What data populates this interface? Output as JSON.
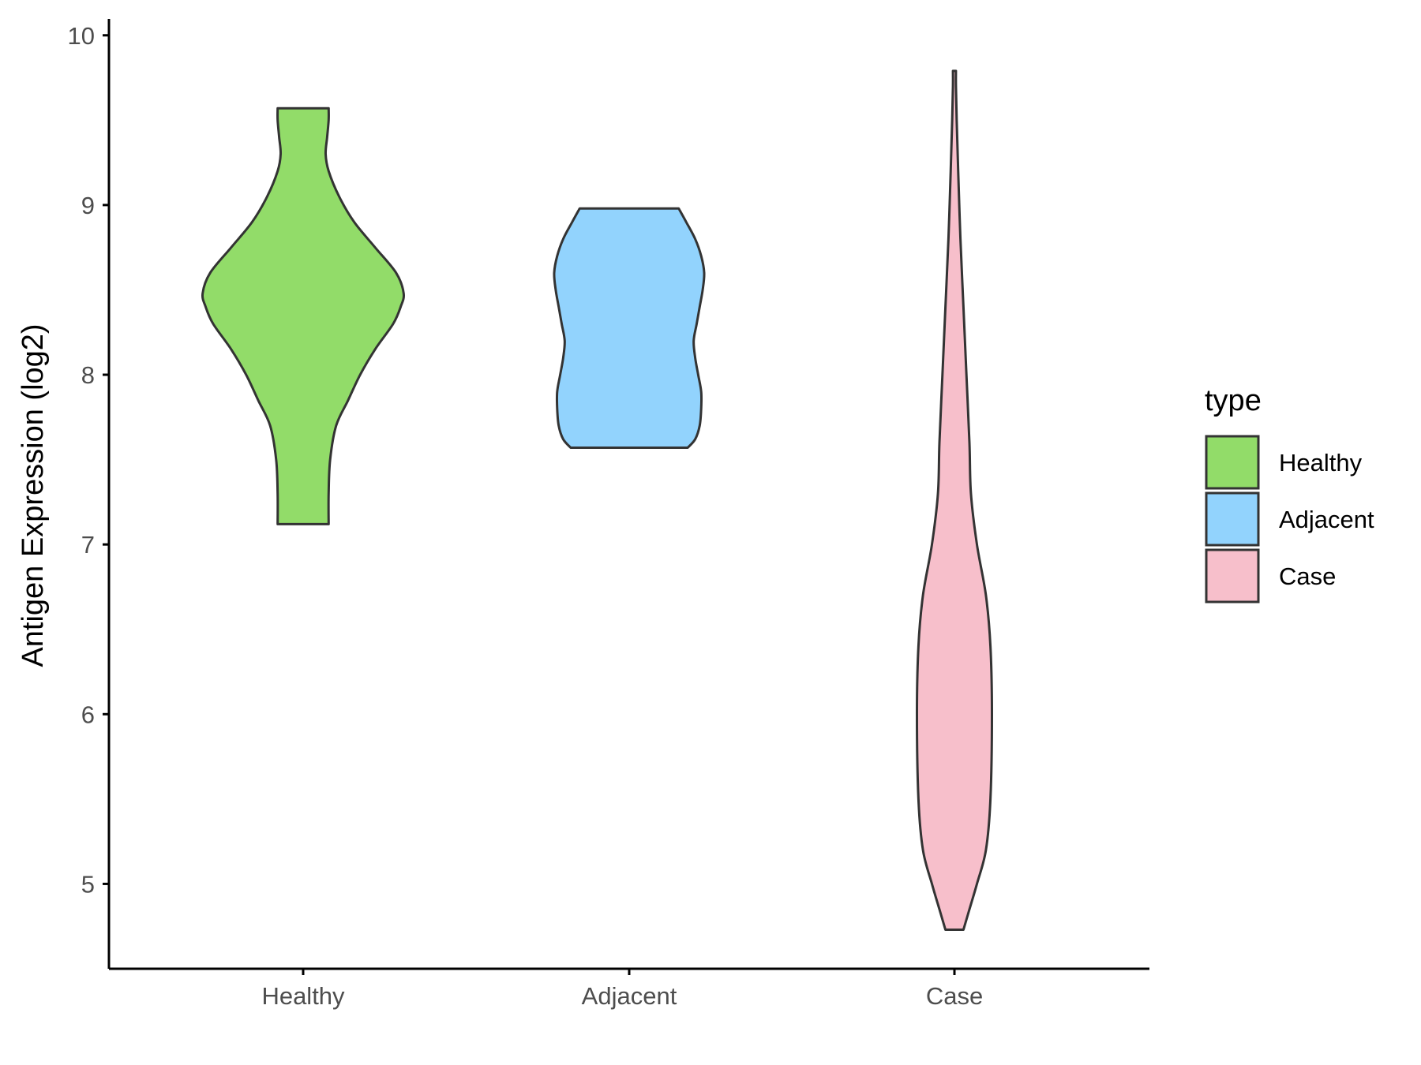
{
  "chart_data": {
    "type": "violin",
    "title": "",
    "xlabel": "",
    "ylabel": "Antigen Expression (log2)",
    "categories": [
      "Healthy",
      "Adjacent",
      "Case"
    ],
    "ylim": [
      4.5,
      10.05
    ],
    "yticks": [
      5,
      6,
      7,
      8,
      9,
      10
    ],
    "grid": false,
    "legend": {
      "title": "type",
      "position": "right",
      "entries": [
        "Healthy",
        "Adjacent",
        "Case"
      ]
    },
    "colors": {
      "Healthy": "#92dc69",
      "Adjacent": "#92d3fd",
      "Case": "#f7bfcb",
      "outline": "#333333"
    },
    "series": [
      {
        "category": "Healthy",
        "min": 7.12,
        "max": 9.57,
        "density": [
          [
            7.12,
            0.17
          ],
          [
            7.3,
            0.17
          ],
          [
            7.5,
            0.18
          ],
          [
            7.7,
            0.22
          ],
          [
            7.85,
            0.3
          ],
          [
            8.0,
            0.38
          ],
          [
            8.15,
            0.48
          ],
          [
            8.3,
            0.6
          ],
          [
            8.4,
            0.65
          ],
          [
            8.48,
            0.67
          ],
          [
            8.6,
            0.62
          ],
          [
            8.75,
            0.48
          ],
          [
            8.9,
            0.34
          ],
          [
            9.05,
            0.24
          ],
          [
            9.2,
            0.17
          ],
          [
            9.3,
            0.15
          ],
          [
            9.4,
            0.16
          ],
          [
            9.5,
            0.17
          ],
          [
            9.57,
            0.17
          ]
        ]
      },
      {
        "category": "Adjacent",
        "min": 7.57,
        "max": 8.98,
        "density": [
          [
            7.57,
            0.39
          ],
          [
            7.62,
            0.44
          ],
          [
            7.7,
            0.47
          ],
          [
            7.8,
            0.48
          ],
          [
            7.9,
            0.48
          ],
          [
            8.0,
            0.46
          ],
          [
            8.1,
            0.44
          ],
          [
            8.2,
            0.43
          ],
          [
            8.3,
            0.45
          ],
          [
            8.4,
            0.47
          ],
          [
            8.5,
            0.49
          ],
          [
            8.6,
            0.5
          ],
          [
            8.7,
            0.48
          ],
          [
            8.8,
            0.44
          ],
          [
            8.9,
            0.38
          ],
          [
            8.98,
            0.33
          ]
        ]
      },
      {
        "category": "Case",
        "min": 4.73,
        "max": 9.79,
        "density": [
          [
            4.73,
            0.06
          ],
          [
            4.85,
            0.1
          ],
          [
            5.0,
            0.15
          ],
          [
            5.2,
            0.21
          ],
          [
            5.5,
            0.24
          ],
          [
            6.0,
            0.25
          ],
          [
            6.4,
            0.24
          ],
          [
            6.7,
            0.21
          ],
          [
            7.0,
            0.15
          ],
          [
            7.3,
            0.11
          ],
          [
            7.6,
            0.1
          ],
          [
            8.0,
            0.08
          ],
          [
            8.4,
            0.06
          ],
          [
            8.8,
            0.04
          ],
          [
            9.2,
            0.025
          ],
          [
            9.5,
            0.015
          ],
          [
            9.7,
            0.01
          ],
          [
            9.79,
            0.01
          ]
        ]
      }
    ]
  }
}
